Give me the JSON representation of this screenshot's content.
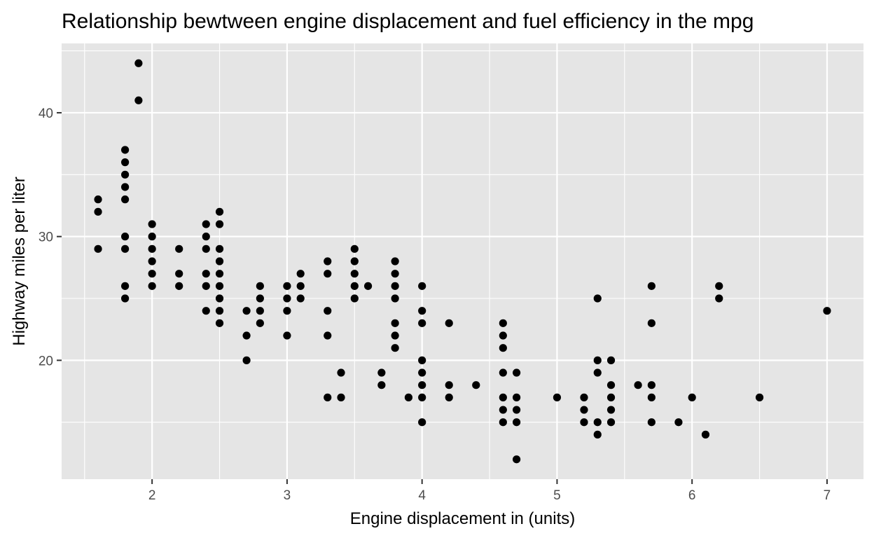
{
  "chart_data": {
    "type": "scatter",
    "title": "Relationship bewtween engine displacement and fuel efficiency in the mpg",
    "xlabel": "Engine displacement in (units)",
    "ylabel": "Highway miles per liter",
    "xlim": [
      1.33,
      7.27
    ],
    "ylim": [
      10.4,
      45.6
    ],
    "x_ticks": [
      2,
      3,
      4,
      5,
      6,
      7
    ],
    "y_ticks": [
      20,
      30,
      40
    ],
    "x_tick_labels": [
      "2",
      "3",
      "4",
      "5",
      "6",
      "7"
    ],
    "y_tick_labels": [
      "20",
      "30",
      "40"
    ],
    "grid": true,
    "background": "#e5e5e5",
    "point_color": "#000000",
    "points": [
      [
        1.6,
        33
      ],
      [
        1.6,
        32
      ],
      [
        1.6,
        29
      ],
      [
        1.8,
        37
      ],
      [
        1.8,
        36
      ],
      [
        1.8,
        35
      ],
      [
        1.8,
        34
      ],
      [
        1.8,
        33
      ],
      [
        1.8,
        30
      ],
      [
        1.8,
        29
      ],
      [
        1.8,
        26
      ],
      [
        1.8,
        25
      ],
      [
        1.9,
        44
      ],
      [
        1.9,
        41
      ],
      [
        2.0,
        31
      ],
      [
        2.0,
        30
      ],
      [
        2.0,
        29
      ],
      [
        2.0,
        28
      ],
      [
        2.0,
        27
      ],
      [
        2.0,
        26
      ],
      [
        2.2,
        29
      ],
      [
        2.2,
        27
      ],
      [
        2.2,
        26
      ],
      [
        2.4,
        31
      ],
      [
        2.4,
        30
      ],
      [
        2.4,
        29
      ],
      [
        2.4,
        27
      ],
      [
        2.4,
        26
      ],
      [
        2.4,
        24
      ],
      [
        2.5,
        32
      ],
      [
        2.5,
        31
      ],
      [
        2.5,
        29
      ],
      [
        2.5,
        28
      ],
      [
        2.5,
        27
      ],
      [
        2.5,
        26
      ],
      [
        2.5,
        25
      ],
      [
        2.5,
        24
      ],
      [
        2.5,
        23
      ],
      [
        2.7,
        24
      ],
      [
        2.7,
        22
      ],
      [
        2.7,
        20
      ],
      [
        2.8,
        26
      ],
      [
        2.8,
        25
      ],
      [
        2.8,
        24
      ],
      [
        2.8,
        23
      ],
      [
        3.0,
        26
      ],
      [
        3.0,
        25
      ],
      [
        3.0,
        24
      ],
      [
        3.0,
        22
      ],
      [
        3.1,
        27
      ],
      [
        3.1,
        26
      ],
      [
        3.1,
        25
      ],
      [
        3.3,
        28
      ],
      [
        3.3,
        27
      ],
      [
        3.3,
        24
      ],
      [
        3.3,
        22
      ],
      [
        3.3,
        17
      ],
      [
        3.4,
        19
      ],
      [
        3.4,
        17
      ],
      [
        3.5,
        29
      ],
      [
        3.5,
        28
      ],
      [
        3.5,
        27
      ],
      [
        3.5,
        26
      ],
      [
        3.5,
        25
      ],
      [
        3.6,
        26
      ],
      [
        3.7,
        19
      ],
      [
        3.7,
        18
      ],
      [
        3.8,
        28
      ],
      [
        3.8,
        27
      ],
      [
        3.8,
        26
      ],
      [
        3.8,
        25
      ],
      [
        3.8,
        23
      ],
      [
        3.8,
        22
      ],
      [
        3.8,
        21
      ],
      [
        3.9,
        17
      ],
      [
        4.0,
        26
      ],
      [
        4.0,
        24
      ],
      [
        4.0,
        23
      ],
      [
        4.0,
        20
      ],
      [
        4.0,
        19
      ],
      [
        4.0,
        18
      ],
      [
        4.0,
        17
      ],
      [
        4.0,
        15
      ],
      [
        4.2,
        23
      ],
      [
        4.2,
        18
      ],
      [
        4.2,
        17
      ],
      [
        4.4,
        18
      ],
      [
        4.6,
        23
      ],
      [
        4.6,
        22
      ],
      [
        4.6,
        21
      ],
      [
        4.6,
        19
      ],
      [
        4.6,
        17
      ],
      [
        4.6,
        16
      ],
      [
        4.6,
        15
      ],
      [
        4.7,
        19
      ],
      [
        4.7,
        17
      ],
      [
        4.7,
        16
      ],
      [
        4.7,
        15
      ],
      [
        4.7,
        12
      ],
      [
        5.0,
        17
      ],
      [
        5.2,
        17
      ],
      [
        5.2,
        16
      ],
      [
        5.2,
        15
      ],
      [
        5.3,
        25
      ],
      [
        5.3,
        20
      ],
      [
        5.3,
        19
      ],
      [
        5.3,
        15
      ],
      [
        5.3,
        14
      ],
      [
        5.4,
        20
      ],
      [
        5.4,
        18
      ],
      [
        5.4,
        17
      ],
      [
        5.4,
        16
      ],
      [
        5.4,
        15
      ],
      [
        5.6,
        18
      ],
      [
        5.7,
        26
      ],
      [
        5.7,
        23
      ],
      [
        5.7,
        18
      ],
      [
        5.7,
        17
      ],
      [
        5.7,
        15
      ],
      [
        5.9,
        15
      ],
      [
        6.0,
        17
      ],
      [
        6.1,
        14
      ],
      [
        6.2,
        26
      ],
      [
        6.2,
        25
      ],
      [
        6.5,
        17
      ],
      [
        7.0,
        24
      ]
    ]
  }
}
